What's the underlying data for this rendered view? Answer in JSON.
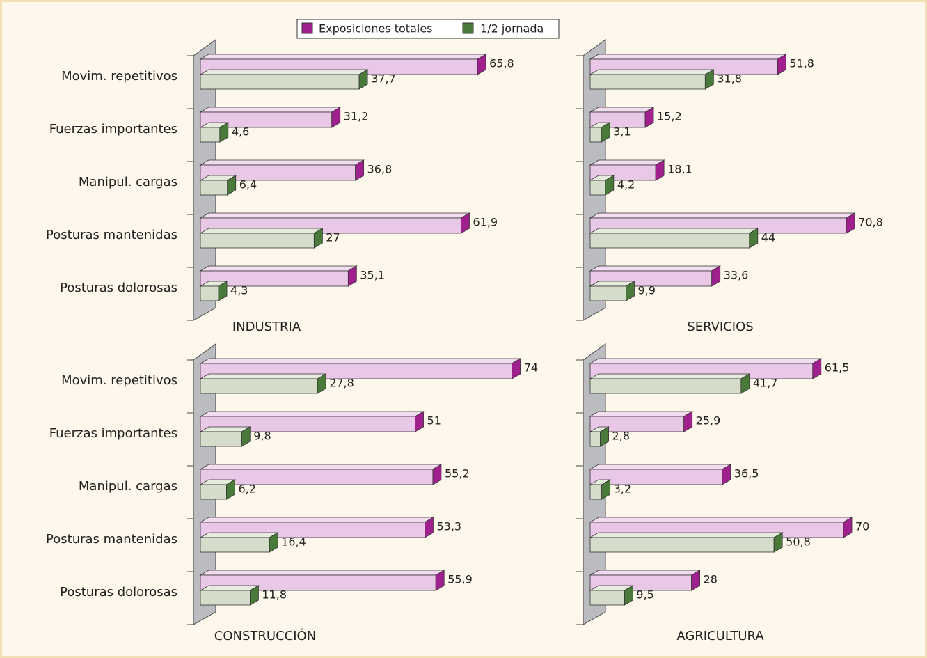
{
  "legend": [
    {
      "name": "Exposiciones totales",
      "color": "#a0208e"
    },
    {
      "name": "1/2 jornada",
      "color": "#4a7a3a"
    }
  ],
  "chart_data": [
    {
      "type": "bar",
      "title": "INDUSTRIA",
      "xlim": [
        0,
        80
      ],
      "categories": [
        "Movim. repetitivos",
        "Fuerzas importantes",
        "Manipul. cargas",
        "Posturas mantenidas",
        "Posturas dolorosas"
      ],
      "series": [
        {
          "values": [
            65.8,
            31.2,
            36.8,
            61.9,
            35.1
          ],
          "value_labels": [
            "65,8",
            "31,2",
            "36,8",
            "61,9",
            "35,1"
          ]
        },
        {
          "values": [
            37.7,
            4.6,
            6.4,
            27,
            4.3
          ],
          "value_labels": [
            "37,7",
            "4,6",
            "6,4",
            "27",
            "4,3"
          ]
        }
      ]
    },
    {
      "type": "bar",
      "title": "SERVICIOS",
      "xlim": [
        0,
        85
      ],
      "series": [
        {
          "values": [
            51.8,
            15.2,
            18.1,
            70.8,
            33.6
          ],
          "value_labels": [
            "51,8",
            "15,2",
            "18,1",
            "70,8",
            "33,6"
          ]
        },
        {
          "values": [
            31.8,
            3.1,
            4.2,
            44,
            9.9
          ],
          "value_labels": [
            "31,8",
            "3,1",
            "4,2",
            "44",
            "9,9"
          ]
        }
      ]
    },
    {
      "type": "bar",
      "title": "CONSTRUCCIÓN",
      "xlim": [
        0,
        80
      ],
      "categories": [
        "Movim. repetitivos",
        "Fuerzas importantes",
        "Manipul. cargas",
        "Posturas mantenidas",
        "Posturas dolorosas"
      ],
      "series": [
        {
          "values": [
            74,
            51,
            55.2,
            53.3,
            55.9
          ],
          "value_labels": [
            "74",
            "51",
            "55,2",
            "53,3",
            "55,9"
          ]
        },
        {
          "values": [
            27.8,
            9.8,
            6.2,
            16.4,
            11.8
          ],
          "value_labels": [
            "27,8",
            "9,8",
            "6,2",
            "16,4",
            "11,8"
          ]
        }
      ]
    },
    {
      "type": "bar",
      "title": "AGRICULTURA",
      "xlim": [
        0,
        85
      ],
      "series": [
        {
          "values": [
            61.5,
            25.9,
            36.5,
            70,
            28
          ],
          "value_labels": [
            "61,5",
            "25,9",
            "36,5",
            "70",
            "28"
          ]
        },
        {
          "values": [
            41.7,
            2.8,
            3.2,
            50.8,
            9.5
          ],
          "value_labels": [
            "41,7",
            "2,8",
            "3,2",
            "50,8",
            "9,5"
          ]
        }
      ]
    }
  ]
}
